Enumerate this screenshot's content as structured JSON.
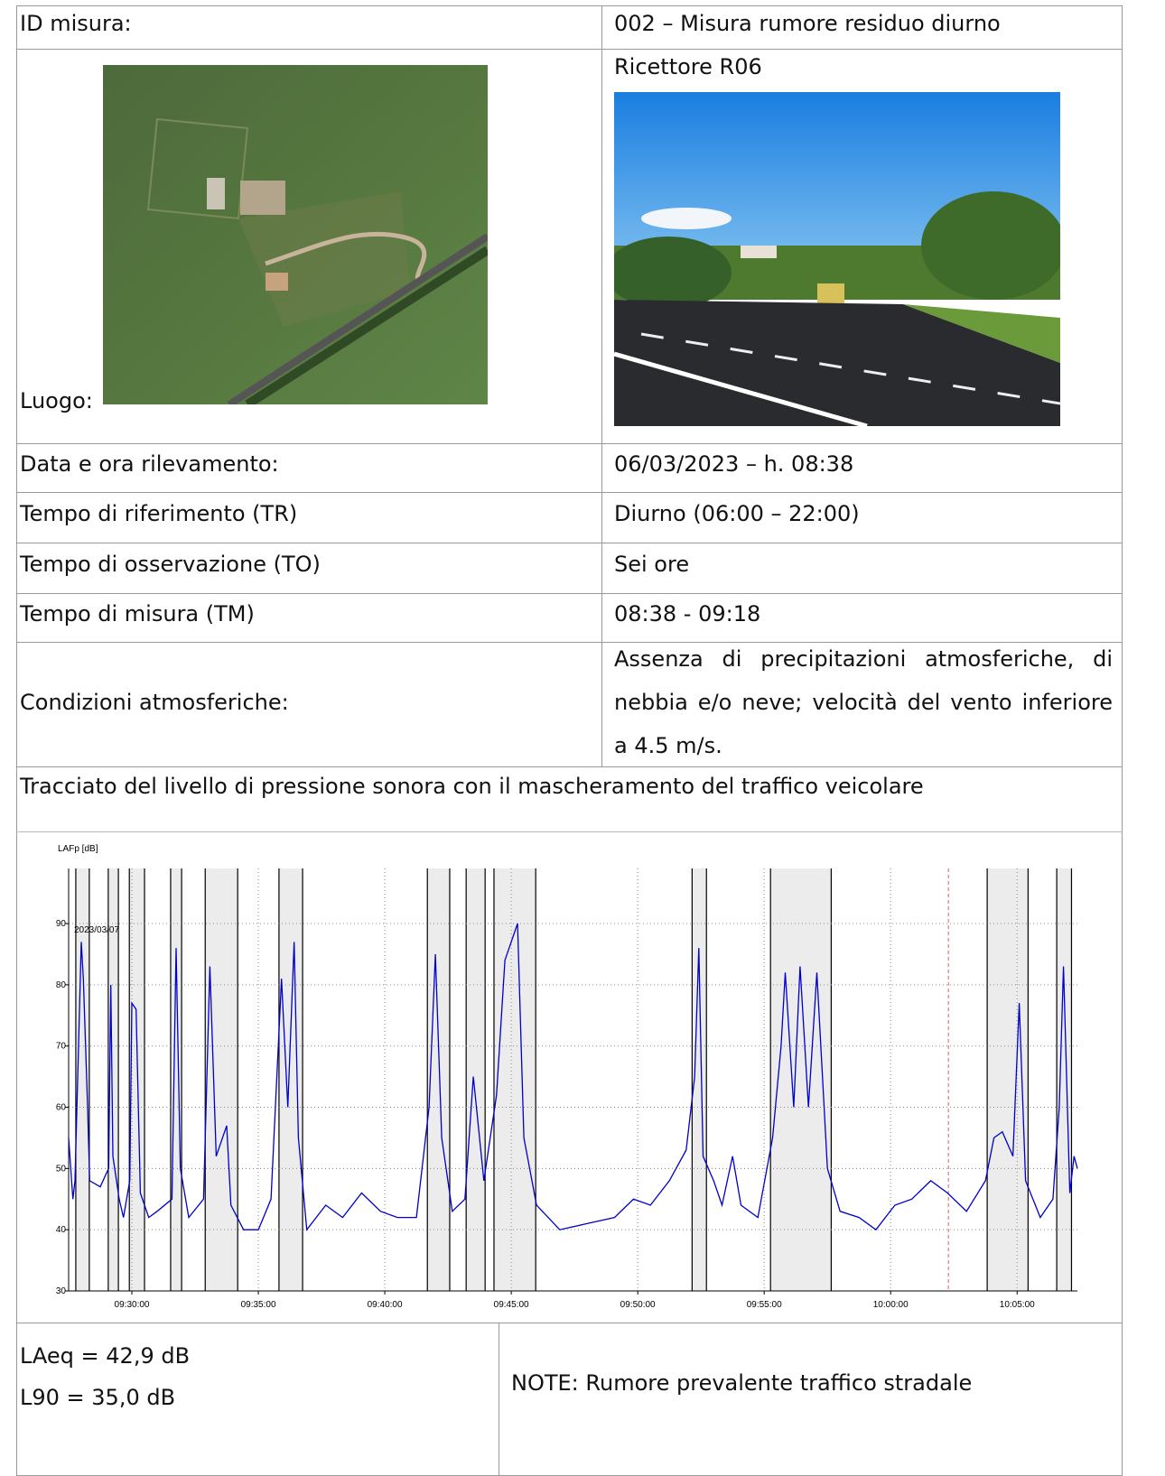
{
  "table": {
    "rows": [
      [
        "ID misura:",
        "002 – Misura rumore residuo diurno"
      ],
      [
        "Luogo:",
        "Ricettore R06"
      ],
      [
        "Data e ora rilevamento:",
        "06/03/2023 – h. 08:38"
      ],
      [
        "Tempo di riferimento (TR)",
        "Diurno (06:00 – 22:00)"
      ],
      [
        "Tempo di osservazione (TO)",
        "Sei ore"
      ],
      [
        "Tempo di misura (TM)",
        "08:38 - 09:18"
      ],
      [
        "Condizioni atmosferiche:",
        "Assenza di precipitazioni atmosferiche, di nebbia e/o neve; velocità del vento inferiore a 4.5 m/s."
      ]
    ],
    "caption": "Tracciato del livello di pressione sonora con il mascheramento del traffico veicolare",
    "results": [
      "LAeq = 42,9 dB",
      "L90 = 35,0 dB"
    ],
    "note": "NOTE: Rumore prevalente traffico stradale"
  },
  "chart_data": {
    "type": "line",
    "y_label": "LAFp [dB]",
    "annotation": "2023/03/07",
    "x": [
      "09:27:30",
      "09:27:40",
      "09:27:45",
      "09:28:00",
      "09:28:05",
      "09:28:15",
      "09:28:20",
      "09:28:45",
      "09:29:05",
      "09:29:10",
      "09:29:15",
      "09:29:30",
      "09:29:40",
      "09:29:55",
      "09:30:00",
      "09:30:10",
      "09:30:20",
      "09:30:40",
      "09:31:00",
      "09:31:35",
      "09:31:45",
      "09:31:55",
      "09:32:15",
      "09:32:50",
      "09:33:05",
      "09:33:20",
      "09:33:45",
      "09:33:55",
      "09:34:25",
      "09:35:00",
      "09:35:30",
      "09:35:55",
      "09:36:10",
      "09:36:25",
      "09:36:35",
      "09:36:55",
      "09:37:40",
      "09:38:20",
      "09:39:05",
      "09:39:50",
      "09:40:30",
      "09:41:15",
      "09:41:45",
      "09:42:00",
      "09:42:15",
      "09:42:40",
      "09:43:10",
      "09:43:30",
      "09:43:55",
      "09:44:25",
      "09:44:45",
      "09:45:15",
      "09:45:30",
      "09:46:00",
      "09:46:55",
      "09:48:00",
      "09:49:05",
      "09:49:50",
      "09:50:30",
      "09:51:15",
      "09:51:55",
      "09:52:15",
      "09:52:25",
      "09:52:35",
      "09:53:00",
      "09:53:20",
      "09:53:45",
      "09:54:05",
      "09:54:45",
      "09:55:20",
      "09:55:40",
      "09:55:50",
      "09:56:10",
      "09:56:25",
      "09:56:45",
      "09:57:05",
      "09:57:30",
      "09:58:00",
      "09:58:45",
      "09:59:25",
      "10:00:10",
      "10:00:50",
      "10:01:35",
      "10:02:15",
      "10:03:00",
      "10:03:45",
      "10:04:05",
      "10:04:25",
      "10:04:50",
      "10:05:05",
      "10:05:20",
      "10:05:55",
      "10:06:25",
      "10:06:40",
      "10:06:50",
      "10:07:05",
      "10:07:15",
      "10:07:23"
    ],
    "series": [
      {
        "color": "#0000cc",
        "values": [
          55,
          45,
          48,
          87,
          81,
          60,
          48,
          47,
          50,
          80,
          52,
          45,
          42,
          48,
          77,
          76,
          46,
          42,
          43,
          45,
          86,
          50,
          42,
          45,
          83,
          52,
          57,
          44,
          40,
          40,
          45,
          81,
          60,
          87,
          55,
          40,
          44,
          42,
          46,
          43,
          42,
          42,
          60,
          85,
          55,
          43,
          45,
          65,
          48,
          62,
          84,
          90,
          55,
          44,
          40,
          41,
          42,
          45,
          44,
          48,
          53,
          65,
          86,
          52,
          48,
          44,
          52,
          44,
          42,
          55,
          70,
          82,
          60,
          83,
          60,
          82,
          50,
          43,
          42,
          40,
          44,
          45,
          48,
          46,
          43,
          48,
          55,
          56,
          52,
          77,
          48,
          42,
          45,
          60,
          83,
          46,
          52,
          50
        ]
      }
    ],
    "xlim": [
      "09:27:30",
      "10:07:23"
    ],
    "xticks": [
      "09:30:00",
      "09:35:00",
      "09:40:00",
      "09:45:00",
      "09:50:00",
      "09:55:00",
      "10:00:00",
      "10:05:00"
    ],
    "ylim": [
      30,
      99
    ],
    "yticks": [
      30,
      40,
      50,
      60,
      70,
      80,
      90
    ],
    "grid": true,
    "masked_intervals": [
      [
        "09:27:47",
        "09:28:19"
      ],
      [
        "09:29:04",
        "09:29:28"
      ],
      [
        "09:29:54",
        "09:30:30"
      ],
      [
        "09:31:32",
        "09:31:58"
      ],
      [
        "09:32:54",
        "09:34:11"
      ],
      [
        "09:35:49",
        "09:36:45"
      ],
      [
        "09:41:41",
        "09:42:34"
      ],
      [
        "09:43:13",
        "09:43:58"
      ],
      [
        "09:44:19",
        "09:45:58"
      ],
      [
        "09:52:09",
        "09:52:43"
      ],
      [
        "09:55:15",
        "09:57:39"
      ],
      [
        "10:03:49",
        "10:05:26"
      ],
      [
        "10:06:34",
        "10:07:09"
      ]
    ],
    "cursor_x": "10:02:17"
  }
}
